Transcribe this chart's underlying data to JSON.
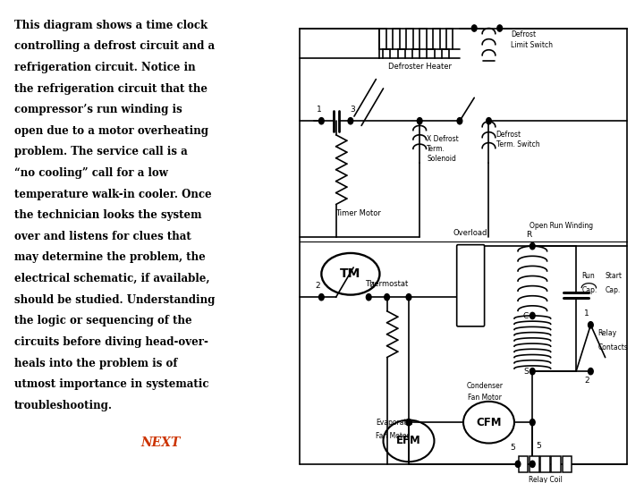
{
  "background_color": "#ffffff",
  "line_color": "#000000",
  "next_color": "#cc3300",
  "main_text_lines": [
    "This diagram shows a time clock",
    "controlling a defrost circuit and a",
    "refrigeration circuit. Notice in",
    "the refrigeration circuit that the",
    "compressor’s run winding is",
    "open due to a motor overheating",
    "problem. The service call is a",
    "“no cooling” call for a low",
    "temperature walk-in cooler. Once",
    "the technician looks the system",
    "over and listens for clues that",
    "may determine the problem, the",
    "electrical schematic, if available,",
    "should be studied. Understanding",
    "the logic or sequencing of the",
    "circuits before diving head-over-",
    "heals into the problem is of",
    "utmost importance in systematic",
    "troubleshooting."
  ],
  "next_text": "NEXT"
}
